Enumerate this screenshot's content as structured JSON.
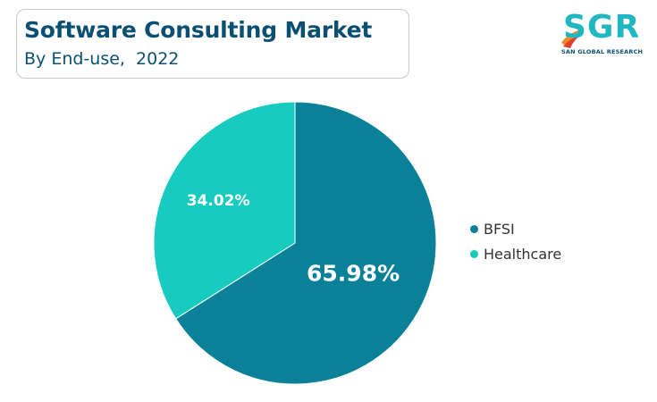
{
  "header": {
    "title": "Software Consulting Market",
    "subtitle": "By End-use,  2022"
  },
  "logo": {
    "text": "SGR",
    "tagline": "SAN GLOBAL RESEARCH",
    "icon": "swoosh-logo-icon"
  },
  "chart_data": {
    "type": "pie",
    "title": "Software Consulting Market",
    "subtitle": "By End-use,  2022",
    "slices": [
      {
        "name": "BFSI",
        "value": 65.98,
        "label": "65.98%",
        "color": "#0a8099"
      },
      {
        "name": "Healthcare",
        "value": 34.02,
        "label": "34.02%",
        "color": "#17cbbf"
      }
    ],
    "start_angle_deg": 0,
    "direction": "clockwise",
    "legend_position": "right"
  }
}
